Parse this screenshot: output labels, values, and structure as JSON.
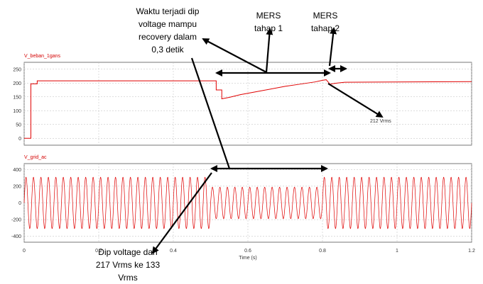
{
  "chart_data": [
    {
      "type": "line",
      "title": "V_beban_1gans",
      "color": "#e00000",
      "xlim": [
        0,
        1.2
      ],
      "ylim": [
        -25,
        275
      ],
      "x_ticks": [
        "0",
        "0.2",
        "0.4",
        "0.6",
        "0.8",
        "1",
        "1.2"
      ],
      "y_ticks": [
        0,
        50,
        100,
        150,
        200,
        250
      ],
      "series": [
        {
          "x": [
            0.0,
            0.018,
            0.018,
            0.035,
            0.035,
            0.515,
            0.515,
            0.53,
            0.53,
            0.55,
            0.58,
            0.62,
            0.66,
            0.7,
            0.74,
            0.78,
            0.8,
            0.81,
            0.82,
            0.83,
            0.84,
            0.86,
            1.2
          ],
          "y": [
            0,
            0,
            197,
            197,
            208,
            208,
            175,
            175,
            143,
            148,
            158,
            168,
            178,
            188,
            196,
            204,
            210,
            212,
            196,
            198,
            200,
            203,
            205
          ]
        }
      ],
      "grid": "dashed"
    },
    {
      "type": "line",
      "title": "V_grid_ac",
      "color": "#e00000",
      "xlim": [
        0,
        1.2
      ],
      "ylim": [
        -470,
        470
      ],
      "x_ticks": [
        "0",
        "0.2",
        "0.4",
        "0.6",
        "0.8",
        "1",
        "1.2"
      ],
      "y_ticks": [
        -400,
        -200,
        0,
        200,
        400
      ],
      "xlabel": "Time (s)",
      "series": [
        {
          "type": "sine",
          "frequency_hz": 50,
          "segments": [
            {
              "from": 0.0,
              "to": 0.5,
              "amplitude": 307
            },
            {
              "from": 0.5,
              "to": 0.8,
              "amplitude": 188
            },
            {
              "from": 0.8,
              "to": 1.2,
              "amplitude": 307
            }
          ]
        }
      ],
      "grid": "dashed"
    }
  ],
  "annotations": {
    "waktu": [
      "Waktu terjadi dip",
      "voltage mampu",
      "recovery dalam",
      "0,3 detik"
    ],
    "mers1": [
      "MERS",
      "tahap 1"
    ],
    "mers2": [
      "MERS",
      "tahap 2"
    ],
    "rms_label": "212 Vrms",
    "dip": [
      "Dip voltage dari",
      "217 Vrms ke 133",
      "Vrms"
    ]
  }
}
